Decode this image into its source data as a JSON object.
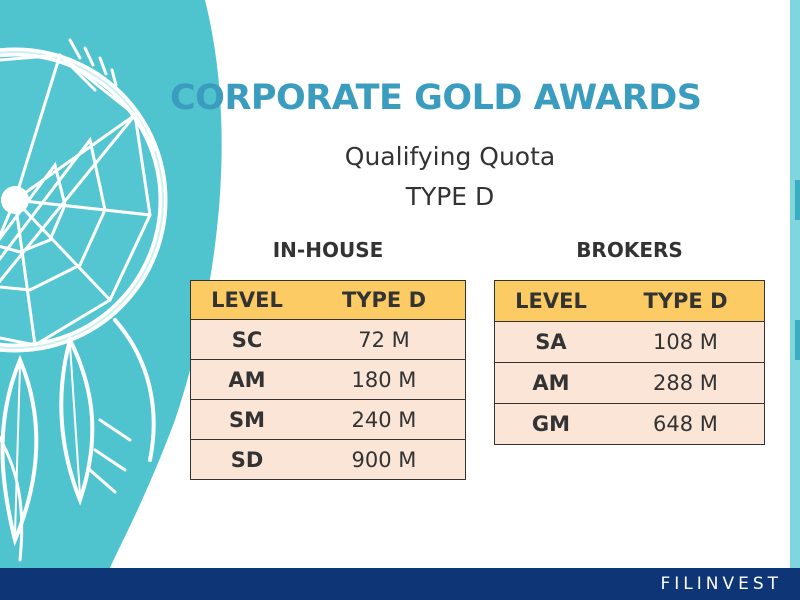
{
  "slide": {
    "title": "CORPORATE GOLD AWARDS",
    "subtitle_line1": "Qualifying Quota",
    "subtitle_line2": "TYPE D"
  },
  "in_house": {
    "heading": "IN-HOUSE",
    "columns": [
      "LEVEL",
      "TYPE D"
    ],
    "rows": [
      {
        "level": "SC",
        "value": "72 M"
      },
      {
        "level": "AM",
        "value": "180 M"
      },
      {
        "level": "SM",
        "value": "240 M"
      },
      {
        "level": "SD",
        "value": "900 M"
      }
    ]
  },
  "brokers": {
    "heading": "BROKERS",
    "columns": [
      "LEVEL",
      "TYPE D"
    ],
    "rows": [
      {
        "level": "SA",
        "value": "108 M"
      },
      {
        "level": "AM",
        "value": "288 M"
      },
      {
        "level": "GM",
        "value": "648 M"
      }
    ]
  },
  "footer": {
    "brand": "FILINVEST"
  },
  "colors": {
    "title": "#3a9dbf",
    "background_teal": "#4fc4cf",
    "table_header": "#fdcb63",
    "table_body": "#fae5d6",
    "footer_bar": "#0e3575"
  },
  "decoration": "dreamcatcher-illustration"
}
